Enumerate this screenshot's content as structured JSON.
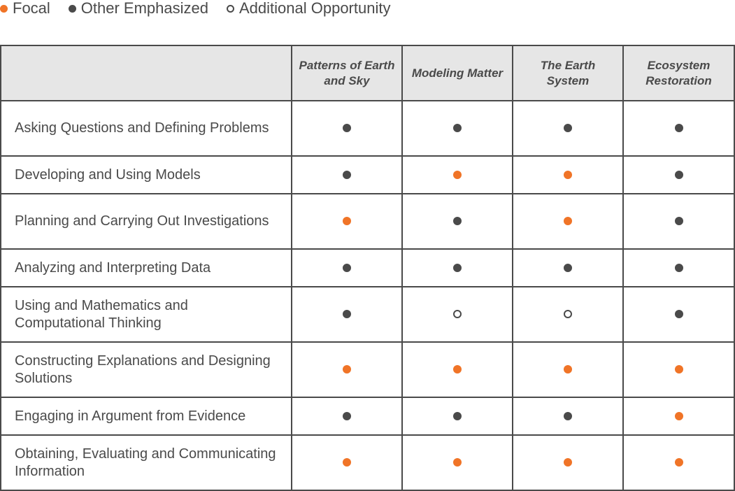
{
  "legend": {
    "items": [
      {
        "key": "focal",
        "label": "Focal",
        "color": "#f07427",
        "filled": true
      },
      {
        "key": "other",
        "label": "Other Emphasized",
        "color": "#4a4a4a",
        "filled": true
      },
      {
        "key": "additional",
        "label": "Additional Opportunity",
        "color": "#4a4a4a",
        "filled": false
      }
    ]
  },
  "table": {
    "corner_label": "",
    "columns": [
      "Patterns of Earth and Sky",
      "Modeling Matter",
      "The Earth System",
      "Ecosystem Restoration"
    ],
    "rows": [
      {
        "label": "Asking Questions and Defining Problems",
        "marks": [
          "other",
          "other",
          "other",
          "other"
        ]
      },
      {
        "label": "Developing and Using Models",
        "marks": [
          "other",
          "focal",
          "focal",
          "other"
        ]
      },
      {
        "label": "Planning and Carrying Out Investigations",
        "marks": [
          "focal",
          "other",
          "focal",
          "other"
        ]
      },
      {
        "label": "Analyzing and Interpreting Data",
        "marks": [
          "other",
          "other",
          "other",
          "other"
        ]
      },
      {
        "label": "Using and Mathematics and Computational Thinking",
        "marks": [
          "other",
          "additional",
          "additional",
          "other"
        ]
      },
      {
        "label": "Constructing Explanations and Designing Solutions",
        "marks": [
          "focal",
          "focal",
          "focal",
          "focal"
        ]
      },
      {
        "label": "Engaging in Argument from Evidence",
        "marks": [
          "other",
          "other",
          "other",
          "focal"
        ]
      },
      {
        "label": "Obtaining, Evaluating and Communicating Information",
        "marks": [
          "focal",
          "focal",
          "focal",
          "focal"
        ]
      }
    ]
  },
  "colors": {
    "focal": "#f07427",
    "other": "#4a4a4a",
    "header_bg": "#e6e6e6",
    "border": "#4a4a4a"
  }
}
